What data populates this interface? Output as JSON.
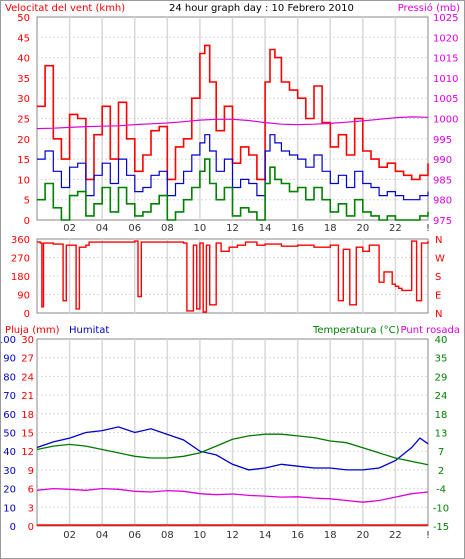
{
  "chart_data": [
    {
      "type": "line",
      "title": "24 hour graph day : 10 Febrero 2010",
      "left_axis_label": "Velocitat del vent (kmh)",
      "right_axis_label": "Pressió (mb)",
      "x_ticks": [
        "02",
        "04",
        "06",
        "08",
        "10",
        "12",
        "14",
        "16",
        "18",
        "20",
        "22",
        "!"
      ],
      "left_ticks": [
        "0",
        "5",
        "10",
        "15",
        "20",
        "25",
        "30",
        "35",
        "40",
        "45",
        "50"
      ],
      "right_ticks": [
        "975",
        "980",
        "985",
        "990",
        "995",
        "1000",
        "1005",
        "1010",
        "1015",
        "1020",
        "1025"
      ],
      "left_range": [
        0,
        50
      ],
      "right_range": [
        975,
        1025
      ],
      "x_range": [
        0,
        24
      ],
      "colors": {
        "gust": "#ff0000",
        "wind": "#0000cc",
        "min": "#008000",
        "pressure": "#dd00dd"
      },
      "series": [
        {
          "key": "gust",
          "color": "#ff0000",
          "axis": "left",
          "x": [
            0,
            0.5,
            1,
            1.5,
            2,
            2.5,
            3,
            3.5,
            4,
            4.5,
            5,
            5.5,
            6,
            6.5,
            7,
            7.5,
            8,
            8.5,
            9,
            9.5,
            10,
            10.3,
            10.6,
            11,
            11.5,
            12,
            12.5,
            13,
            13.5,
            14,
            14.3,
            14.6,
            15,
            15.5,
            16,
            16.5,
            17,
            17.5,
            18,
            18.5,
            19,
            19.5,
            20,
            20.5,
            21,
            21.5,
            22,
            22.5,
            23,
            23.5,
            24
          ],
          "values": [
            28,
            38,
            20,
            15,
            26,
            25,
            10,
            21,
            28,
            15,
            29,
            20,
            12,
            16,
            22,
            23,
            10,
            18,
            20,
            30,
            41,
            43,
            34,
            22,
            28,
            14,
            18,
            16,
            10,
            34,
            42,
            40,
            34,
            32,
            30,
            25,
            33,
            24,
            18,
            21,
            16,
            25,
            17,
            15,
            13,
            14,
            12,
            11,
            10,
            11,
            14
          ]
        },
        {
          "key": "wind",
          "color": "#0000cc",
          "axis": "left",
          "x": [
            0,
            0.5,
            1,
            1.5,
            2,
            2.5,
            3,
            3.5,
            4,
            4.5,
            5,
            5.5,
            6,
            6.5,
            7,
            7.5,
            8,
            8.5,
            9,
            9.5,
            10,
            10.3,
            10.6,
            11,
            11.5,
            12,
            12.5,
            13,
            13.5,
            14,
            14.3,
            14.6,
            15,
            15.5,
            16,
            16.5,
            17,
            17.5,
            18,
            18.5,
            19,
            19.5,
            20,
            20.5,
            21,
            21.5,
            22,
            22.5,
            23,
            23.5,
            24
          ],
          "values": [
            15,
            17,
            12,
            8,
            13,
            14,
            6,
            11,
            14,
            9,
            15,
            11,
            7,
            8,
            11,
            12,
            6,
            9,
            12,
            16,
            19,
            21,
            17,
            12,
            15,
            8,
            10,
            9,
            6,
            17,
            21,
            19,
            17,
            16,
            15,
            13,
            16,
            12,
            9,
            11,
            8,
            12,
            9,
            8,
            6,
            7,
            6,
            5,
            5,
            6,
            7
          ]
        },
        {
          "key": "min",
          "color": "#008000",
          "axis": "left",
          "x": [
            0,
            0.5,
            1,
            1.5,
            2,
            2.5,
            3,
            3.5,
            4,
            4.5,
            5,
            5.5,
            6,
            6.5,
            7,
            7.5,
            8,
            8.5,
            9,
            9.5,
            10,
            10.3,
            10.6,
            11,
            11.5,
            12,
            12.5,
            13,
            13.5,
            14,
            14.3,
            14.6,
            15,
            15.5,
            16,
            16.5,
            17,
            17.5,
            18,
            18.5,
            19,
            19.5,
            20,
            20.5,
            21,
            21.5,
            22,
            22.5,
            23,
            23.5,
            24
          ],
          "values": [
            5,
            9,
            3,
            0,
            6,
            7,
            1,
            4,
            8,
            2,
            8,
            4,
            1,
            2,
            4,
            6,
            0,
            2,
            5,
            8,
            12,
            15,
            9,
            5,
            8,
            1,
            3,
            2,
            0,
            9,
            13,
            10,
            9,
            7,
            8,
            5,
            8,
            5,
            2,
            4,
            1,
            5,
            2,
            1,
            0,
            1,
            0,
            0,
            0,
            1,
            2
          ]
        },
        {
          "key": "pressure",
          "color": "#dd00dd",
          "axis": "right",
          "x": [
            0,
            1,
            2,
            3,
            4,
            5,
            6,
            7,
            8,
            9,
            10,
            11,
            12,
            13,
            14,
            15,
            16,
            17,
            18,
            19,
            20,
            21,
            22,
            23,
            24
          ],
          "values": [
            997.5,
            997.6,
            997.8,
            998.0,
            998.1,
            998.2,
            998.5,
            998.7,
            998.9,
            999.2,
            999.6,
            999.8,
            999.8,
            999.5,
            999.0,
            998.6,
            998.5,
            998.6,
            998.8,
            999.1,
            999.4,
            999.8,
            1000.2,
            1000.4,
            1000.3
          ]
        }
      ]
    },
    {
      "type": "line",
      "title": "",
      "right_axis_letters": [
        "N",
        "W",
        "S",
        "E",
        "N"
      ],
      "left_ticks": [
        "0",
        "90",
        "180",
        "270",
        "360"
      ],
      "left_range": [
        0,
        360
      ],
      "x_range": [
        0,
        24
      ],
      "series": [
        {
          "name": "",
          "color": "#ff0000",
          "x": [
            0,
            0.2,
            0.3,
            0.4,
            1,
            1.6,
            1.8,
            2.4,
            2.6,
            3,
            3.2,
            6,
            6.2,
            6.4,
            9,
            9.2,
            9.6,
            9.8,
            10,
            10.2,
            10.4,
            10.6,
            11,
            11.3,
            11.8,
            12.3,
            12.8,
            13.5,
            14,
            15,
            16,
            17,
            18,
            18.5,
            18.8,
            19.2,
            19.6,
            20,
            20.4,
            21,
            21.3,
            21.8,
            22,
            22.2,
            22.4,
            23,
            23.3,
            23.6,
            24
          ],
          "values": [
            345,
            340,
            30,
            340,
            335,
            60,
            330,
            20,
            320,
            330,
            345,
            350,
            80,
            345,
            340,
            10,
            330,
            20,
            340,
            5,
            330,
            40,
            340,
            300,
            320,
            330,
            345,
            330,
            335,
            325,
            330,
            320,
            330,
            60,
            310,
            40,
            320,
            300,
            330,
            150,
            200,
            140,
            130,
            120,
            110,
            350,
            60,
            340,
            350
          ]
        }
      ]
    },
    {
      "type": "line",
      "title": "",
      "left_axis_label_1": "Pluja (mm)",
      "left_axis_label_2": "Humitat",
      "right_axis_label_1": "Temperatura (°C)",
      "right_axis_label_2": "Punt rosada",
      "rain_ticks": [
        "0",
        "3",
        "6",
        "9",
        "12",
        "15",
        "18",
        "21",
        "24",
        "27",
        "30"
      ],
      "humidity_ticks": [
        "0",
        "10",
        "20",
        "30",
        "40",
        "50",
        "60",
        "70",
        "80",
        "90",
        "100"
      ],
      "temp_ticks": [
        "-15",
        "-10",
        "-4",
        "2",
        "7",
        "13",
        "18",
        "24",
        "29",
        "35",
        "40"
      ],
      "x_ticks": [
        "02",
        "04",
        "06",
        "08",
        "10",
        "12",
        "14",
        "16",
        "18",
        "20",
        "22",
        "!"
      ],
      "humidity_range": [
        0,
        100
      ],
      "temp_range": [
        -15,
        40
      ],
      "x_range": [
        0,
        24
      ],
      "series": [
        {
          "key": "humidity",
          "color": "#0000cc",
          "axis": "humidity",
          "x": [
            0,
            1,
            2,
            3,
            4,
            5,
            6,
            7,
            8,
            9,
            10,
            11,
            12,
            13,
            14,
            15,
            16,
            17,
            18,
            19,
            20,
            21,
            22,
            23,
            23.5,
            24
          ],
          "values": [
            42,
            45,
            47,
            50,
            51,
            53,
            50,
            52,
            49,
            46,
            40,
            38,
            33,
            30,
            31,
            33,
            32,
            31,
            31,
            30,
            30,
            31,
            35,
            42,
            47,
            44
          ]
        },
        {
          "key": "temperature",
          "color": "#007a00",
          "axis": "temp",
          "x": [
            0,
            1,
            2,
            3,
            4,
            5,
            6,
            7,
            8,
            9,
            10,
            11,
            12,
            13,
            14,
            15,
            16,
            17,
            18,
            19,
            20,
            21,
            22,
            23,
            24
          ],
          "values": [
            7.5,
            8.5,
            9.0,
            8.5,
            7.5,
            6.5,
            5.5,
            5.0,
            5.0,
            5.5,
            6.5,
            8.5,
            10.5,
            11.5,
            12.0,
            12.0,
            11.5,
            11.0,
            10.0,
            9.5,
            8.0,
            6.5,
            5.0,
            4.0,
            3.0
          ]
        },
        {
          "key": "dewpoint",
          "color": "#dd00dd",
          "axis": "temp",
          "x": [
            0,
            1,
            2,
            3,
            4,
            5,
            6,
            7,
            8,
            9,
            10,
            11,
            12,
            13,
            14,
            15,
            16,
            17,
            18,
            19,
            20,
            21,
            22,
            23,
            24
          ],
          "values": [
            -4.5,
            -4.0,
            -4.2,
            -4.5,
            -4.0,
            -4.2,
            -4.8,
            -5.0,
            -4.6,
            -4.8,
            -5.5,
            -5.8,
            -5.6,
            -6.0,
            -6.2,
            -6.5,
            -6.4,
            -6.8,
            -7.0,
            -7.5,
            -8.0,
            -7.5,
            -6.5,
            -5.5,
            -5.0
          ]
        },
        {
          "key": "rain",
          "color": "#ff0000",
          "axis": "rain",
          "x": [
            0,
            24
          ],
          "values": [
            0,
            0
          ]
        }
      ]
    }
  ]
}
